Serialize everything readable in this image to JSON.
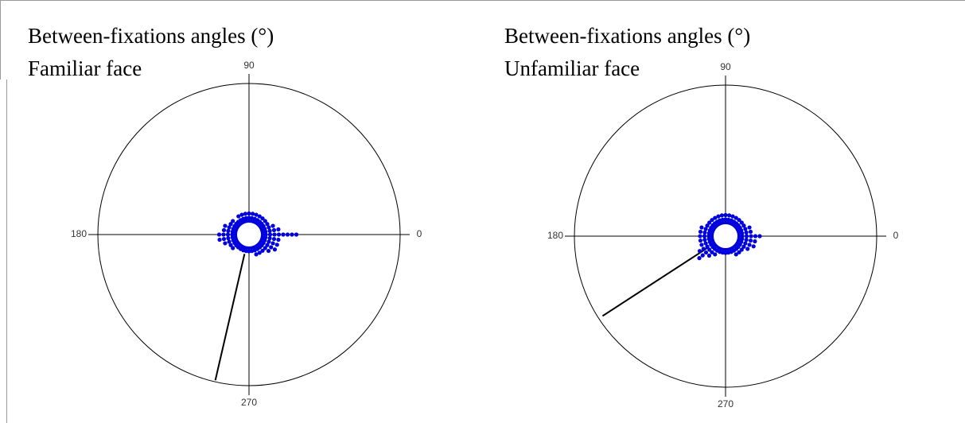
{
  "chart_data": [
    {
      "type": "circular",
      "title": "Between-fixations angles (°)",
      "subtitle": "Familiar face",
      "thetaticks": [
        0,
        90,
        180,
        270
      ],
      "color": "#0000dd",
      "angles": [
        0,
        10,
        20,
        30,
        40,
        50,
        60,
        70,
        80,
        90,
        100,
        110,
        120,
        130,
        140,
        150,
        160,
        170,
        180,
        190,
        200,
        210,
        220,
        230,
        240,
        250,
        260,
        270,
        280,
        290,
        300,
        310,
        320,
        330,
        340,
        350
      ],
      "counts": [
        8,
        4,
        3,
        2,
        2,
        2,
        2,
        2,
        2,
        2,
        2,
        2,
        2,
        1,
        2,
        2,
        3,
        3,
        4,
        4,
        3,
        2,
        2,
        1,
        1,
        1,
        1,
        1,
        1,
        2,
        2,
        2,
        3,
        4,
        4,
        4
      ],
      "mean_angle": 257,
      "mean_length": 0.99
    },
    {
      "type": "circular",
      "title": "Between-fixations angles (°)",
      "subtitle": "Unfamiliar face",
      "thetaticks": [
        0,
        90,
        180,
        270
      ],
      "color": "#0000dd",
      "angles": [
        0,
        10,
        20,
        30,
        40,
        50,
        60,
        70,
        80,
        90,
        100,
        110,
        120,
        130,
        140,
        150,
        160,
        170,
        180,
        190,
        200,
        210,
        220,
        230,
        240,
        250,
        260,
        270,
        280,
        290,
        300,
        310,
        320,
        330,
        340,
        350
      ],
      "counts": [
        5,
        3,
        3,
        2,
        2,
        2,
        2,
        2,
        2,
        2,
        2,
        2,
        2,
        2,
        2,
        2,
        3,
        3,
        3,
        3,
        3,
        4,
        5,
        3,
        2,
        1,
        1,
        1,
        1,
        1,
        2,
        2,
        2,
        3,
        4,
        4
      ],
      "mean_angle": 213,
      "mean_length": 0.97
    }
  ]
}
